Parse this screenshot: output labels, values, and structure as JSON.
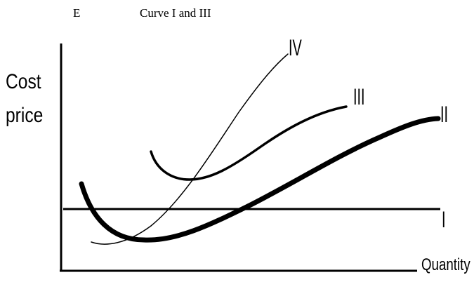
{
  "header": {
    "option_letter": "E",
    "option_text": "Curve I and III"
  },
  "axes": {
    "ylabel_line1": "Cost",
    "ylabel_line2": "price",
    "xlabel": "Quantity"
  },
  "curves": {
    "I": "I",
    "II": "II",
    "III": "III",
    "IV": "IV"
  },
  "colors": {
    "ink": "#000000",
    "background": "#ffffff"
  }
}
